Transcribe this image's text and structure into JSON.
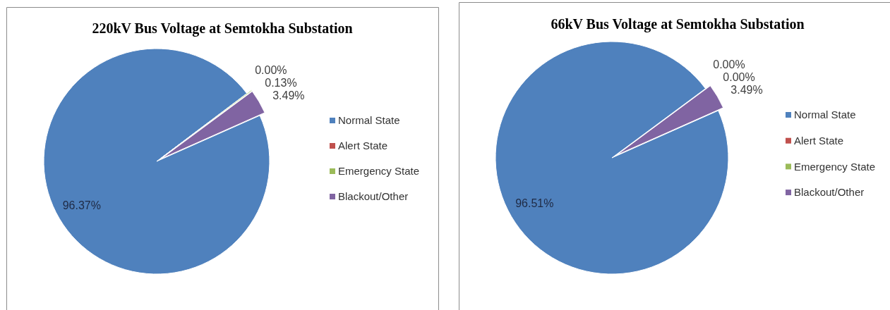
{
  "chart_data": [
    {
      "type": "pie",
      "title": "220kV Bus Voltage at Semtokha Substation",
      "categories": [
        "Normal State",
        "Alert State",
        "Emergency State",
        "Blackout/Other"
      ],
      "values": [
        96.37,
        0,
        0.13,
        3.49
      ],
      "colors": [
        "#4f81bd",
        "#c0504d",
        "#9bbb59",
        "#8064a2"
      ],
      "value_labels": [
        "96.37%",
        "0.00%",
        "0.13%",
        "3.49%"
      ],
      "legend": "right"
    },
    {
      "type": "pie",
      "title": "66kV Bus Voltage at Semtokha Substation",
      "categories": [
        "Normal State",
        "Alert State",
        "Emergency State",
        "Blackout/Other"
      ],
      "values": [
        96.51,
        0,
        0,
        3.49
      ],
      "colors": [
        "#4f81bd",
        "#c0504d",
        "#9bbb59",
        "#8064a2"
      ],
      "value_labels": [
        "96.51%",
        "0.00%",
        "0.00%",
        "3.49%"
      ],
      "legend": "right"
    }
  ]
}
